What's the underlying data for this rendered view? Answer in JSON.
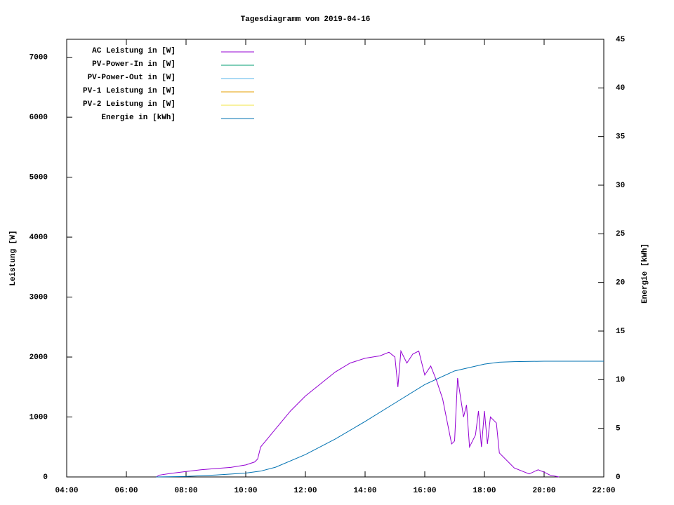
{
  "chart_data": {
    "type": "line",
    "title": "Tagesdiagramm vom 2019-04-16",
    "ylabel": "Leistung [W]",
    "y2label": "Energie [kWh]",
    "xlim": [
      4,
      22
    ],
    "xticks": [
      {
        "value": 4,
        "label": "04:00"
      },
      {
        "value": 6,
        "label": "06:00"
      },
      {
        "value": 8,
        "label": "08:00"
      },
      {
        "value": 10,
        "label": "10:00"
      },
      {
        "value": 12,
        "label": "12:00"
      },
      {
        "value": 14,
        "label": "14:00"
      },
      {
        "value": 16,
        "label": "16:00"
      },
      {
        "value": 18,
        "label": "18:00"
      },
      {
        "value": 20,
        "label": "20:00"
      },
      {
        "value": 22,
        "label": "22:00"
      }
    ],
    "ylim": [
      0,
      7300
    ],
    "yticks": [
      0,
      1000,
      2000,
      3000,
      4000,
      5000,
      6000,
      7000
    ],
    "y2lim": [
      0,
      45
    ],
    "y2ticks": [
      0,
      5,
      10,
      15,
      20,
      25,
      30,
      35,
      40,
      45
    ],
    "legend": "top-left",
    "series": [
      {
        "name": "AC Leistung in [W]",
        "color": "#9400d3",
        "x": [
          7.0,
          7.1,
          7.5,
          8.0,
          8.5,
          9.0,
          9.5,
          10.0,
          10.3,
          10.4,
          10.5,
          11.0,
          11.5,
          12.0,
          12.5,
          13.0,
          13.5,
          14.0,
          14.5,
          14.8,
          15.0,
          15.1,
          15.2,
          15.4,
          15.6,
          15.8,
          16.0,
          16.2,
          16.4,
          16.6,
          16.8,
          16.9,
          17.0,
          17.1,
          17.3,
          17.4,
          17.5,
          17.7,
          17.8,
          17.9,
          18.0,
          18.1,
          18.2,
          18.4,
          18.5,
          18.8,
          19.0,
          19.5,
          19.8,
          20.0,
          20.2,
          20.5
        ],
        "values": [
          0,
          30,
          60,
          90,
          120,
          140,
          160,
          200,
          250,
          300,
          500,
          800,
          1100,
          1350,
          1550,
          1750,
          1900,
          1980,
          2020,
          2080,
          2000,
          1500,
          2100,
          1900,
          2050,
          2100,
          1700,
          1850,
          1600,
          1300,
          800,
          550,
          600,
          1650,
          1000,
          1200,
          500,
          700,
          1100,
          500,
          1100,
          550,
          1000,
          900,
          400,
          250,
          150,
          50,
          120,
          80,
          30,
          0
        ]
      },
      {
        "name": "PV-Power-In in [W]",
        "color": "#009e73",
        "x": [],
        "values": []
      },
      {
        "name": "PV-Power-Out in [W]",
        "color": "#56b4e9",
        "x": [],
        "values": []
      },
      {
        "name": "PV-1 Leistung in [W]",
        "color": "#e69f00",
        "x": [],
        "values": []
      },
      {
        "name": "PV-2 Leistung in [W]",
        "color": "#f0e442",
        "x": [],
        "values": []
      },
      {
        "name": "Energie in [kWh]",
        "color": "#0072b2",
        "axis": "y2",
        "x": [
          7,
          8,
          9,
          10,
          10.5,
          11,
          12,
          13,
          14,
          15,
          16,
          17,
          18,
          18.5,
          19,
          20,
          22
        ],
        "values": [
          0,
          0.05,
          0.2,
          0.4,
          0.6,
          1.0,
          2.3,
          3.9,
          5.7,
          7.6,
          9.5,
          10.9,
          11.6,
          11.8,
          11.85,
          11.9,
          11.9
        ]
      }
    ]
  }
}
